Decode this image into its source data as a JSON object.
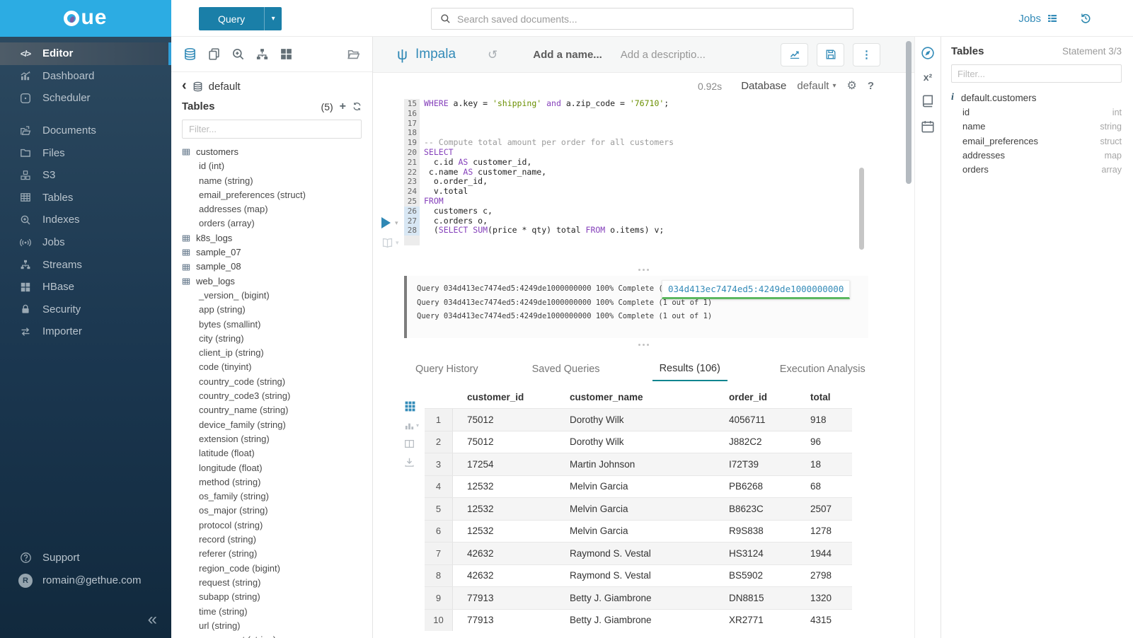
{
  "topbar": {
    "query_button_label": "Query",
    "search_placeholder": "Search saved documents...",
    "jobs_label": "Jobs"
  },
  "sidebar": {
    "items": [
      {
        "label": "Editor",
        "icon": "code",
        "active": true
      },
      {
        "label": "Dashboard",
        "icon": "dashboard"
      },
      {
        "label": "Scheduler",
        "icon": "scheduler"
      },
      {
        "label": "Documents",
        "icon": "documents",
        "group_start": true
      },
      {
        "label": "Files",
        "icon": "folder"
      },
      {
        "label": "S3",
        "icon": "cubes"
      },
      {
        "label": "Tables",
        "icon": "table-grid"
      },
      {
        "label": "Indexes",
        "icon": "search-plus"
      },
      {
        "label": "Jobs",
        "icon": "broadcast"
      },
      {
        "label": "Streams",
        "icon": "sitemap"
      },
      {
        "label": "HBase",
        "icon": "th-large"
      },
      {
        "label": "Security",
        "icon": "lock"
      },
      {
        "label": "Importer",
        "icon": "swap"
      }
    ],
    "support_label": "Support",
    "user_initial": "R",
    "user_email": "romain@gethue.com"
  },
  "assist": {
    "toolbar_icons": [
      "database",
      "copy",
      "search-plus",
      "sitemap",
      "th-large"
    ],
    "toolbar_right_icon": "folder-open",
    "breadcrumb": "default",
    "tables_label": "Tables",
    "tables_count": "(5)",
    "filter_placeholder": "Filter...",
    "tables": [
      {
        "name": "customers",
        "columns": [
          "id (int)",
          "name (string)",
          "email_preferences (struct)",
          "addresses (map)",
          "orders (array)"
        ]
      },
      {
        "name": "k8s_logs",
        "columns": []
      },
      {
        "name": "sample_07",
        "columns": []
      },
      {
        "name": "sample_08",
        "columns": []
      },
      {
        "name": "web_logs",
        "columns": [
          "_version_ (bigint)",
          "app (string)",
          "bytes (smallint)",
          "city (string)",
          "client_ip (string)",
          "code (tinyint)",
          "country_code (string)",
          "country_code3 (string)",
          "country_name (string)",
          "device_family (string)",
          "extension (string)",
          "latitude (float)",
          "longitude (float)",
          "method (string)",
          "os_family (string)",
          "os_major (string)",
          "protocol (string)",
          "record (string)",
          "referer (string)",
          "region_code (bigint)",
          "request (string)",
          "subapp (string)",
          "time (string)",
          "url (string)",
          "user_agent (string)"
        ]
      }
    ]
  },
  "editor": {
    "engine": "Impala",
    "name_placeholder": "Add a name...",
    "description_placeholder": "Add a descriptio...",
    "duration": "0.92s",
    "database_label": "Database",
    "database_value": "default",
    "code_lines": [
      {
        "n": 15,
        "seg": [
          [
            "k",
            "WHERE"
          ],
          [
            "p",
            " a.key = "
          ],
          [
            "s",
            "'shipping'"
          ],
          [
            "k",
            " and"
          ],
          [
            "p",
            " a.zip_code = "
          ],
          [
            "s",
            "'76710'"
          ],
          [
            "p",
            ";"
          ]
        ]
      },
      {
        "n": 16,
        "seg": []
      },
      {
        "n": 17,
        "seg": []
      },
      {
        "n": 18,
        "seg": []
      },
      {
        "n": 19,
        "seg": [
          [
            "c",
            "-- Compute total amount per order for all customers"
          ]
        ]
      },
      {
        "n": 20,
        "seg": [
          [
            "k",
            "SELECT"
          ]
        ]
      },
      {
        "n": 21,
        "seg": [
          [
            "p",
            "  c.id "
          ],
          [
            "k",
            "AS"
          ],
          [
            "p",
            " customer_id,"
          ]
        ]
      },
      {
        "n": 22,
        "seg": [
          [
            "p",
            " c.name "
          ],
          [
            "k",
            "AS"
          ],
          [
            "p",
            " customer_name,"
          ]
        ]
      },
      {
        "n": 23,
        "seg": [
          [
            "p",
            "  o.order_id,"
          ]
        ]
      },
      {
        "n": 24,
        "seg": [
          [
            "p",
            "  v.total"
          ]
        ]
      },
      {
        "n": 25,
        "seg": [
          [
            "k",
            "FROM"
          ]
        ]
      },
      {
        "n": 26,
        "seg": [
          [
            "p",
            "  customers c,"
          ]
        ],
        "hl": true
      },
      {
        "n": 27,
        "seg": [
          [
            "p",
            "  c.orders o,"
          ]
        ],
        "hl": true
      },
      {
        "n": 28,
        "seg": [
          [
            "p",
            "  ("
          ],
          [
            "k",
            "SELECT"
          ],
          [
            "p",
            " "
          ],
          [
            "k",
            "SUM"
          ],
          [
            "p",
            "(price * qty) total "
          ],
          [
            "k",
            "FROM"
          ],
          [
            "p",
            " o.items) v;"
          ]
        ],
        "hl": true
      }
    ]
  },
  "log": {
    "lines": [
      "Query 034d413ec7474ed5:4249de1000000000 100% Complete (1 out of 1)",
      "Query 034d413ec7474ed5:4249de1000000000 100% Complete (1 out of 1)",
      "Query 034d413ec7474ed5:4249de1000000000 100% Complete (1 out of 1)"
    ],
    "popover_text": "034d413ec7474ed5:4249de1000000000"
  },
  "result_tabs": {
    "tabs": [
      {
        "label": "Query History"
      },
      {
        "label": "Saved Queries"
      },
      {
        "label": "Results (106)",
        "active": true
      },
      {
        "label": "Execution Analysis"
      }
    ]
  },
  "results": {
    "toolbar_icons": [
      "grid",
      "chart-bars",
      "columns-split",
      "download"
    ],
    "columns": [
      "customer_id",
      "customer_name",
      "order_id",
      "total"
    ],
    "rows": [
      [
        "1",
        "75012",
        "Dorothy Wilk",
        "4056711",
        "918"
      ],
      [
        "2",
        "75012",
        "Dorothy Wilk",
        "J882C2",
        "96"
      ],
      [
        "3",
        "17254",
        "Martin Johnson",
        "I72T39",
        "18"
      ],
      [
        "4",
        "12532",
        "Melvin Garcia",
        "PB6268",
        "68"
      ],
      [
        "5",
        "12532",
        "Melvin Garcia",
        "B8623C",
        "2507"
      ],
      [
        "6",
        "12532",
        "Melvin Garcia",
        "R9S838",
        "1278"
      ],
      [
        "7",
        "42632",
        "Raymond S. Vestal",
        "HS3124",
        "1944"
      ],
      [
        "8",
        "42632",
        "Raymond S. Vestal",
        "BS5902",
        "2798"
      ],
      [
        "9",
        "77913",
        "Betty J. Giambrone",
        "DN8815",
        "1320"
      ],
      [
        "10",
        "77913",
        "Betty J. Giambrone",
        "XR2771",
        "4315"
      ]
    ]
  },
  "right_strip_icons": [
    "compass",
    "superscript",
    "book",
    "calendar"
  ],
  "right_panel": {
    "title": "Tables",
    "statement": "Statement 3/3",
    "filter_placeholder": "Filter...",
    "table_name": "default.customers",
    "columns": [
      {
        "name": "id",
        "type": "int"
      },
      {
        "name": "name",
        "type": "string"
      },
      {
        "name": "email_preferences",
        "type": "struct"
      },
      {
        "name": "addresses",
        "type": "map"
      },
      {
        "name": "orders",
        "type": "array"
      }
    ]
  },
  "colors": {
    "accent": "#338bb8",
    "logo_bg": "#2cace3",
    "query_button": "#1a7fa8",
    "keyword": "#8540bb",
    "string": "#6a8f00",
    "comment": "#9b9b9b",
    "tab_active_underline": "#11858f",
    "progress_green": "#5cb860"
  }
}
